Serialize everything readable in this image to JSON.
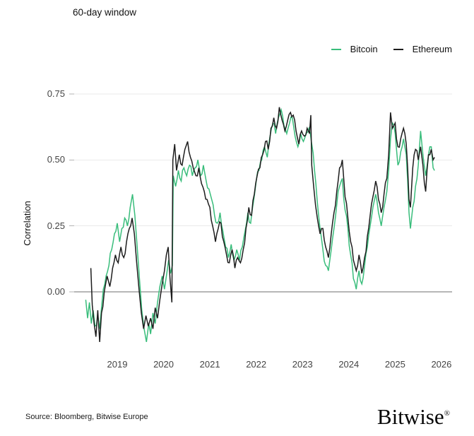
{
  "footer": {
    "source": "Source: Bloomberg, Bitwise Europe",
    "brand": "Bitwise",
    "brand_mark": "®"
  },
  "chart_data": {
    "type": "line",
    "title": "60-day window",
    "xlabel": "",
    "ylabel": "Correlation",
    "grid": true,
    "legend_position": "top-right",
    "x_range": [
      2018.07,
      2026.23
    ],
    "ylim": [
      -0.22,
      0.84
    ],
    "grid_color": "#eaeaea",
    "zero_line_color": "#6f6f6f",
    "tick_color": "#b3b3b3",
    "y_ticks": [
      {
        "value": 0.75,
        "label": "0.75"
      },
      {
        "value": 0.5,
        "label": "0.50"
      },
      {
        "value": 0.25,
        "label": "0.25"
      },
      {
        "value": 0.0,
        "label": "0.00"
      }
    ],
    "x_ticks": [
      {
        "value": 2019,
        "label": "2019"
      },
      {
        "value": 2020,
        "label": "2020"
      },
      {
        "value": 2021,
        "label": "2021"
      },
      {
        "value": 2022,
        "label": "2022"
      },
      {
        "value": 2023,
        "label": "2023"
      },
      {
        "value": 2024,
        "label": "2024"
      },
      {
        "value": 2025,
        "label": "2025"
      },
      {
        "value": 2026,
        "label": "2026"
      }
    ],
    "series": [
      {
        "name": "Bitcoin",
        "color": "#39bd7b",
        "points": [
          [
            2018.32,
            -0.03
          ],
          [
            2018.36,
            -0.1
          ],
          [
            2018.4,
            -0.04
          ],
          [
            2018.44,
            -0.12
          ],
          [
            2018.48,
            -0.07
          ],
          [
            2018.52,
            -0.13
          ],
          [
            2018.58,
            -0.09
          ],
          [
            2018.62,
            -0.14
          ],
          [
            2018.66,
            -0.06
          ],
          [
            2018.7,
            0.01
          ],
          [
            2018.76,
            0.06
          ],
          [
            2018.82,
            0.1
          ],
          [
            2018.88,
            0.16
          ],
          [
            2018.94,
            0.22
          ],
          [
            2019.0,
            0.26
          ],
          [
            2019.05,
            0.19
          ],
          [
            2019.1,
            0.24
          ],
          [
            2019.16,
            0.28
          ],
          [
            2019.22,
            0.25
          ],
          [
            2019.28,
            0.32
          ],
          [
            2019.33,
            0.37
          ],
          [
            2019.38,
            0.29
          ],
          [
            2019.43,
            0.17
          ],
          [
            2019.48,
            0.05
          ],
          [
            2019.53,
            -0.07
          ],
          [
            2019.58,
            -0.14
          ],
          [
            2019.63,
            -0.19
          ],
          [
            2019.68,
            -0.12
          ],
          [
            2019.72,
            -0.16
          ],
          [
            2019.77,
            -0.08
          ],
          [
            2019.82,
            -0.12
          ],
          [
            2019.87,
            -0.04
          ],
          [
            2019.92,
            0.02
          ],
          [
            2019.97,
            0.06
          ],
          [
            2020.02,
            0.01
          ],
          [
            2020.07,
            0.07
          ],
          [
            2020.11,
            0.12
          ],
          [
            2020.15,
            0.07
          ],
          [
            2020.19,
            0.1
          ],
          [
            2020.21,
            0.44
          ],
          [
            2020.26,
            0.4
          ],
          [
            2020.32,
            0.46
          ],
          [
            2020.38,
            0.42
          ],
          [
            2020.44,
            0.47
          ],
          [
            2020.5,
            0.44
          ],
          [
            2020.56,
            0.48
          ],
          [
            2020.62,
            0.44
          ],
          [
            2020.68,
            0.47
          ],
          [
            2020.74,
            0.5
          ],
          [
            2020.8,
            0.44
          ],
          [
            2020.86,
            0.48
          ],
          [
            2020.92,
            0.42
          ],
          [
            2020.98,
            0.39
          ],
          [
            2021.04,
            0.35
          ],
          [
            2021.1,
            0.29
          ],
          [
            2021.16,
            0.26
          ],
          [
            2021.22,
            0.3
          ],
          [
            2021.28,
            0.23
          ],
          [
            2021.34,
            0.17
          ],
          [
            2021.4,
            0.13
          ],
          [
            2021.46,
            0.18
          ],
          [
            2021.52,
            0.12
          ],
          [
            2021.58,
            0.16
          ],
          [
            2021.64,
            0.12
          ],
          [
            2021.7,
            0.17
          ],
          [
            2021.76,
            0.23
          ],
          [
            2021.82,
            0.3
          ],
          [
            2021.88,
            0.26
          ],
          [
            2021.94,
            0.34
          ],
          [
            2022.0,
            0.42
          ],
          [
            2022.06,
            0.46
          ],
          [
            2022.12,
            0.5
          ],
          [
            2022.18,
            0.55
          ],
          [
            2022.24,
            0.51
          ],
          [
            2022.3,
            0.59
          ],
          [
            2022.36,
            0.64
          ],
          [
            2022.42,
            0.6
          ],
          [
            2022.48,
            0.66
          ],
          [
            2022.54,
            0.69
          ],
          [
            2022.6,
            0.63
          ],
          [
            2022.66,
            0.6
          ],
          [
            2022.72,
            0.64
          ],
          [
            2022.78,
            0.66
          ],
          [
            2022.84,
            0.59
          ],
          [
            2022.9,
            0.55
          ],
          [
            2022.96,
            0.6
          ],
          [
            2023.02,
            0.57
          ],
          [
            2023.08,
            0.6
          ],
          [
            2023.14,
            0.62
          ],
          [
            2023.2,
            0.56
          ],
          [
            2023.26,
            0.46
          ],
          [
            2023.32,
            0.34
          ],
          [
            2023.38,
            0.24
          ],
          [
            2023.44,
            0.16
          ],
          [
            2023.5,
            0.1
          ],
          [
            2023.56,
            0.08
          ],
          [
            2023.62,
            0.16
          ],
          [
            2023.68,
            0.24
          ],
          [
            2023.74,
            0.33
          ],
          [
            2023.8,
            0.4
          ],
          [
            2023.86,
            0.43
          ],
          [
            2023.92,
            0.31
          ],
          [
            2023.98,
            0.24
          ],
          [
            2024.04,
            0.14
          ],
          [
            2024.1,
            0.05
          ],
          [
            2024.16,
            0.01
          ],
          [
            2024.22,
            0.08
          ],
          [
            2024.28,
            0.03
          ],
          [
            2024.34,
            0.1
          ],
          [
            2024.4,
            0.17
          ],
          [
            2024.46,
            0.25
          ],
          [
            2024.52,
            0.32
          ],
          [
            2024.58,
            0.37
          ],
          [
            2024.64,
            0.3
          ],
          [
            2024.7,
            0.25
          ],
          [
            2024.76,
            0.32
          ],
          [
            2024.82,
            0.38
          ],
          [
            2024.86,
            0.46
          ],
          [
            2024.9,
            0.58
          ],
          [
            2024.94,
            0.64
          ],
          [
            2025.0,
            0.6
          ],
          [
            2025.06,
            0.48
          ],
          [
            2025.12,
            0.53
          ],
          [
            2025.18,
            0.58
          ],
          [
            2025.24,
            0.52
          ],
          [
            2025.3,
            0.3
          ],
          [
            2025.33,
            0.24
          ],
          [
            2025.38,
            0.32
          ],
          [
            2025.44,
            0.4
          ],
          [
            2025.5,
            0.48
          ],
          [
            2025.55,
            0.61
          ],
          [
            2025.6,
            0.52
          ],
          [
            2025.66,
            0.44
          ],
          [
            2025.72,
            0.52
          ],
          [
            2025.78,
            0.55
          ],
          [
            2025.82,
            0.47
          ],
          [
            2025.85,
            0.46
          ]
        ]
      },
      {
        "name": "Ethereum",
        "color": "#1d1d1d",
        "points": [
          [
            2018.43,
            0.09
          ],
          [
            2018.46,
            -0.05
          ],
          [
            2018.5,
            -0.12
          ],
          [
            2018.54,
            -0.17
          ],
          [
            2018.58,
            -0.07
          ],
          [
            2018.62,
            -0.19
          ],
          [
            2018.66,
            -0.08
          ],
          [
            2018.72,
            0.0
          ],
          [
            2018.78,
            0.06
          ],
          [
            2018.84,
            0.02
          ],
          [
            2018.9,
            0.09
          ],
          [
            2018.96,
            0.14
          ],
          [
            2019.02,
            0.11
          ],
          [
            2019.08,
            0.17
          ],
          [
            2019.14,
            0.13
          ],
          [
            2019.2,
            0.19
          ],
          [
            2019.26,
            0.24
          ],
          [
            2019.32,
            0.28
          ],
          [
            2019.37,
            0.22
          ],
          [
            2019.42,
            0.11
          ],
          [
            2019.47,
            0.01
          ],
          [
            2019.52,
            -0.08
          ],
          [
            2019.57,
            -0.14
          ],
          [
            2019.62,
            -0.09
          ],
          [
            2019.67,
            -0.13
          ],
          [
            2019.72,
            -0.1
          ],
          [
            2019.77,
            -0.14
          ],
          [
            2019.82,
            -0.06
          ],
          [
            2019.87,
            -0.1
          ],
          [
            2019.92,
            -0.03
          ],
          [
            2019.97,
            0.03
          ],
          [
            2020.02,
            0.08
          ],
          [
            2020.06,
            0.14
          ],
          [
            2020.1,
            0.17
          ],
          [
            2020.14,
            0.05
          ],
          [
            2020.18,
            -0.04
          ],
          [
            2020.2,
            0.5
          ],
          [
            2020.24,
            0.56
          ],
          [
            2020.28,
            0.46
          ],
          [
            2020.34,
            0.52
          ],
          [
            2020.4,
            0.48
          ],
          [
            2020.46,
            0.54
          ],
          [
            2020.52,
            0.57
          ],
          [
            2020.58,
            0.51
          ],
          [
            2020.64,
            0.47
          ],
          [
            2020.7,
            0.44
          ],
          [
            2020.76,
            0.47
          ],
          [
            2020.82,
            0.41
          ],
          [
            2020.88,
            0.38
          ],
          [
            2020.94,
            0.35
          ],
          [
            2021.0,
            0.32
          ],
          [
            2021.06,
            0.25
          ],
          [
            2021.12,
            0.19
          ],
          [
            2021.18,
            0.24
          ],
          [
            2021.24,
            0.26
          ],
          [
            2021.3,
            0.19
          ],
          [
            2021.36,
            0.14
          ],
          [
            2021.42,
            0.11
          ],
          [
            2021.48,
            0.16
          ],
          [
            2021.54,
            0.09
          ],
          [
            2021.6,
            0.13
          ],
          [
            2021.66,
            0.11
          ],
          [
            2021.72,
            0.16
          ],
          [
            2021.78,
            0.24
          ],
          [
            2021.84,
            0.32
          ],
          [
            2021.9,
            0.29
          ],
          [
            2021.96,
            0.37
          ],
          [
            2022.02,
            0.44
          ],
          [
            2022.08,
            0.47
          ],
          [
            2022.14,
            0.52
          ],
          [
            2022.2,
            0.57
          ],
          [
            2022.26,
            0.54
          ],
          [
            2022.32,
            0.62
          ],
          [
            2022.38,
            0.66
          ],
          [
            2022.44,
            0.62
          ],
          [
            2022.5,
            0.7
          ],
          [
            2022.56,
            0.65
          ],
          [
            2022.62,
            0.61
          ],
          [
            2022.68,
            0.65
          ],
          [
            2022.74,
            0.68
          ],
          [
            2022.8,
            0.67
          ],
          [
            2022.86,
            0.61
          ],
          [
            2022.92,
            0.56
          ],
          [
            2022.98,
            0.61
          ],
          [
            2023.04,
            0.59
          ],
          [
            2023.1,
            0.62
          ],
          [
            2023.15,
            0.6
          ],
          [
            2023.18,
            0.67
          ],
          [
            2023.2,
            0.48
          ],
          [
            2023.24,
            0.4
          ],
          [
            2023.28,
            0.33
          ],
          [
            2023.32,
            0.28
          ],
          [
            2023.38,
            0.22
          ],
          [
            2023.44,
            0.24
          ],
          [
            2023.5,
            0.17
          ],
          [
            2023.56,
            0.13
          ],
          [
            2023.62,
            0.22
          ],
          [
            2023.68,
            0.3
          ],
          [
            2023.74,
            0.38
          ],
          [
            2023.8,
            0.47
          ],
          [
            2023.86,
            0.5
          ],
          [
            2023.92,
            0.36
          ],
          [
            2023.98,
            0.28
          ],
          [
            2024.04,
            0.19
          ],
          [
            2024.1,
            0.12
          ],
          [
            2024.16,
            0.08
          ],
          [
            2024.22,
            0.14
          ],
          [
            2024.28,
            0.07
          ],
          [
            2024.34,
            0.13
          ],
          [
            2024.4,
            0.21
          ],
          [
            2024.46,
            0.29
          ],
          [
            2024.52,
            0.36
          ],
          [
            2024.58,
            0.42
          ],
          [
            2024.64,
            0.35
          ],
          [
            2024.7,
            0.3
          ],
          [
            2024.76,
            0.37
          ],
          [
            2024.82,
            0.43
          ],
          [
            2024.86,
            0.52
          ],
          [
            2024.9,
            0.68
          ],
          [
            2024.94,
            0.62
          ],
          [
            2025.0,
            0.64
          ],
          [
            2025.06,
            0.55
          ],
          [
            2025.12,
            0.58
          ],
          [
            2025.18,
            0.62
          ],
          [
            2025.24,
            0.56
          ],
          [
            2025.3,
            0.35
          ],
          [
            2025.33,
            0.32
          ],
          [
            2025.38,
            0.47
          ],
          [
            2025.44,
            0.54
          ],
          [
            2025.5,
            0.5
          ],
          [
            2025.55,
            0.55
          ],
          [
            2025.6,
            0.48
          ],
          [
            2025.66,
            0.38
          ],
          [
            2025.72,
            0.52
          ],
          [
            2025.78,
            0.54
          ],
          [
            2025.82,
            0.5
          ],
          [
            2025.85,
            0.51
          ]
        ]
      }
    ]
  }
}
